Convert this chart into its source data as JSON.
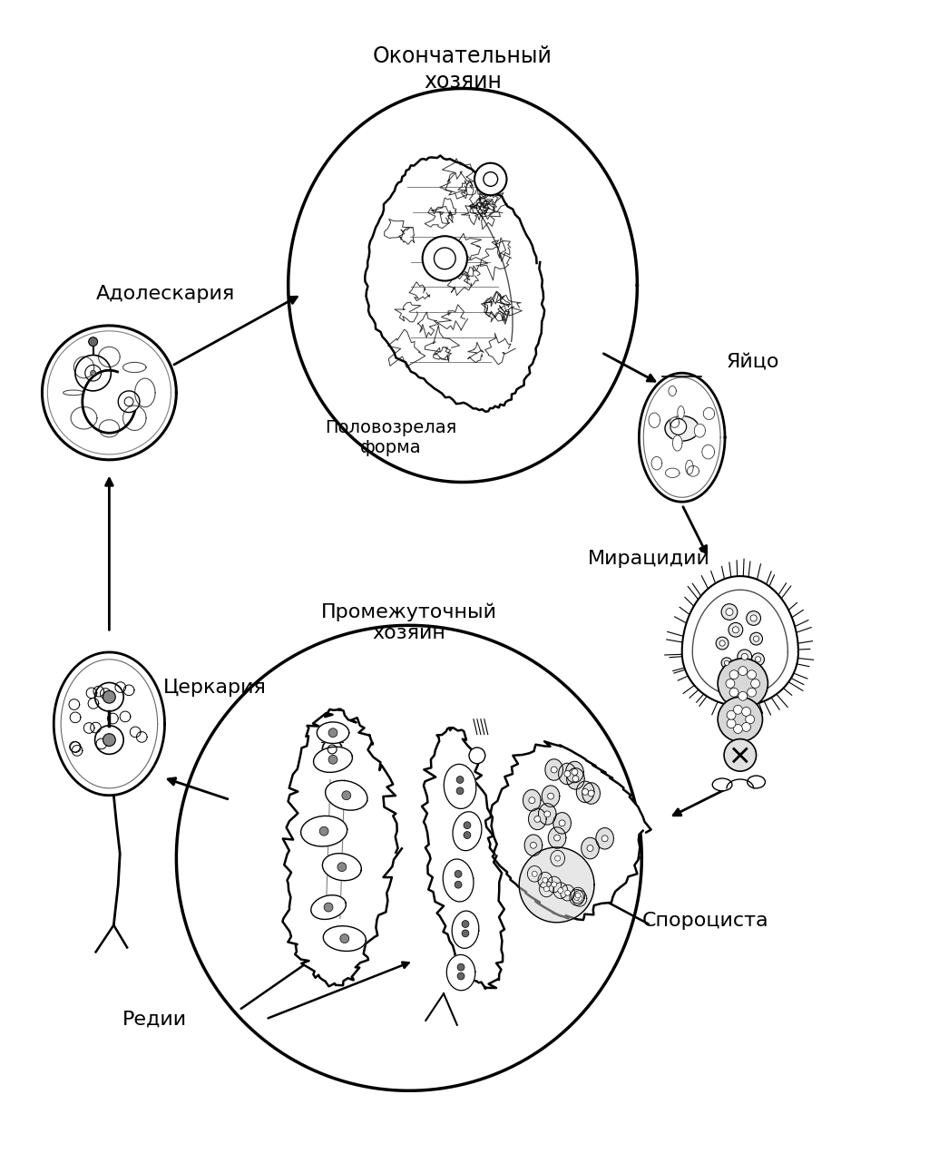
{
  "background_color": "#ffffff",
  "text_color": "#000000",
  "line_color": "#000000",
  "figsize": [
    10.24,
    12.82
  ],
  "dpi": 100,
  "labels": {
    "final_host": "Окончательный\nхозяин",
    "adult_form": "Половозрелая\nформа",
    "intermediate_host": "Промежуточный\nхозяин",
    "egg": "Яйцо",
    "miracidium": "Мирацидий",
    "sporocyst": "Спороциста",
    "redia": "Редии",
    "cercaria": "Церкария",
    "adolescaria": "Адолескария"
  }
}
